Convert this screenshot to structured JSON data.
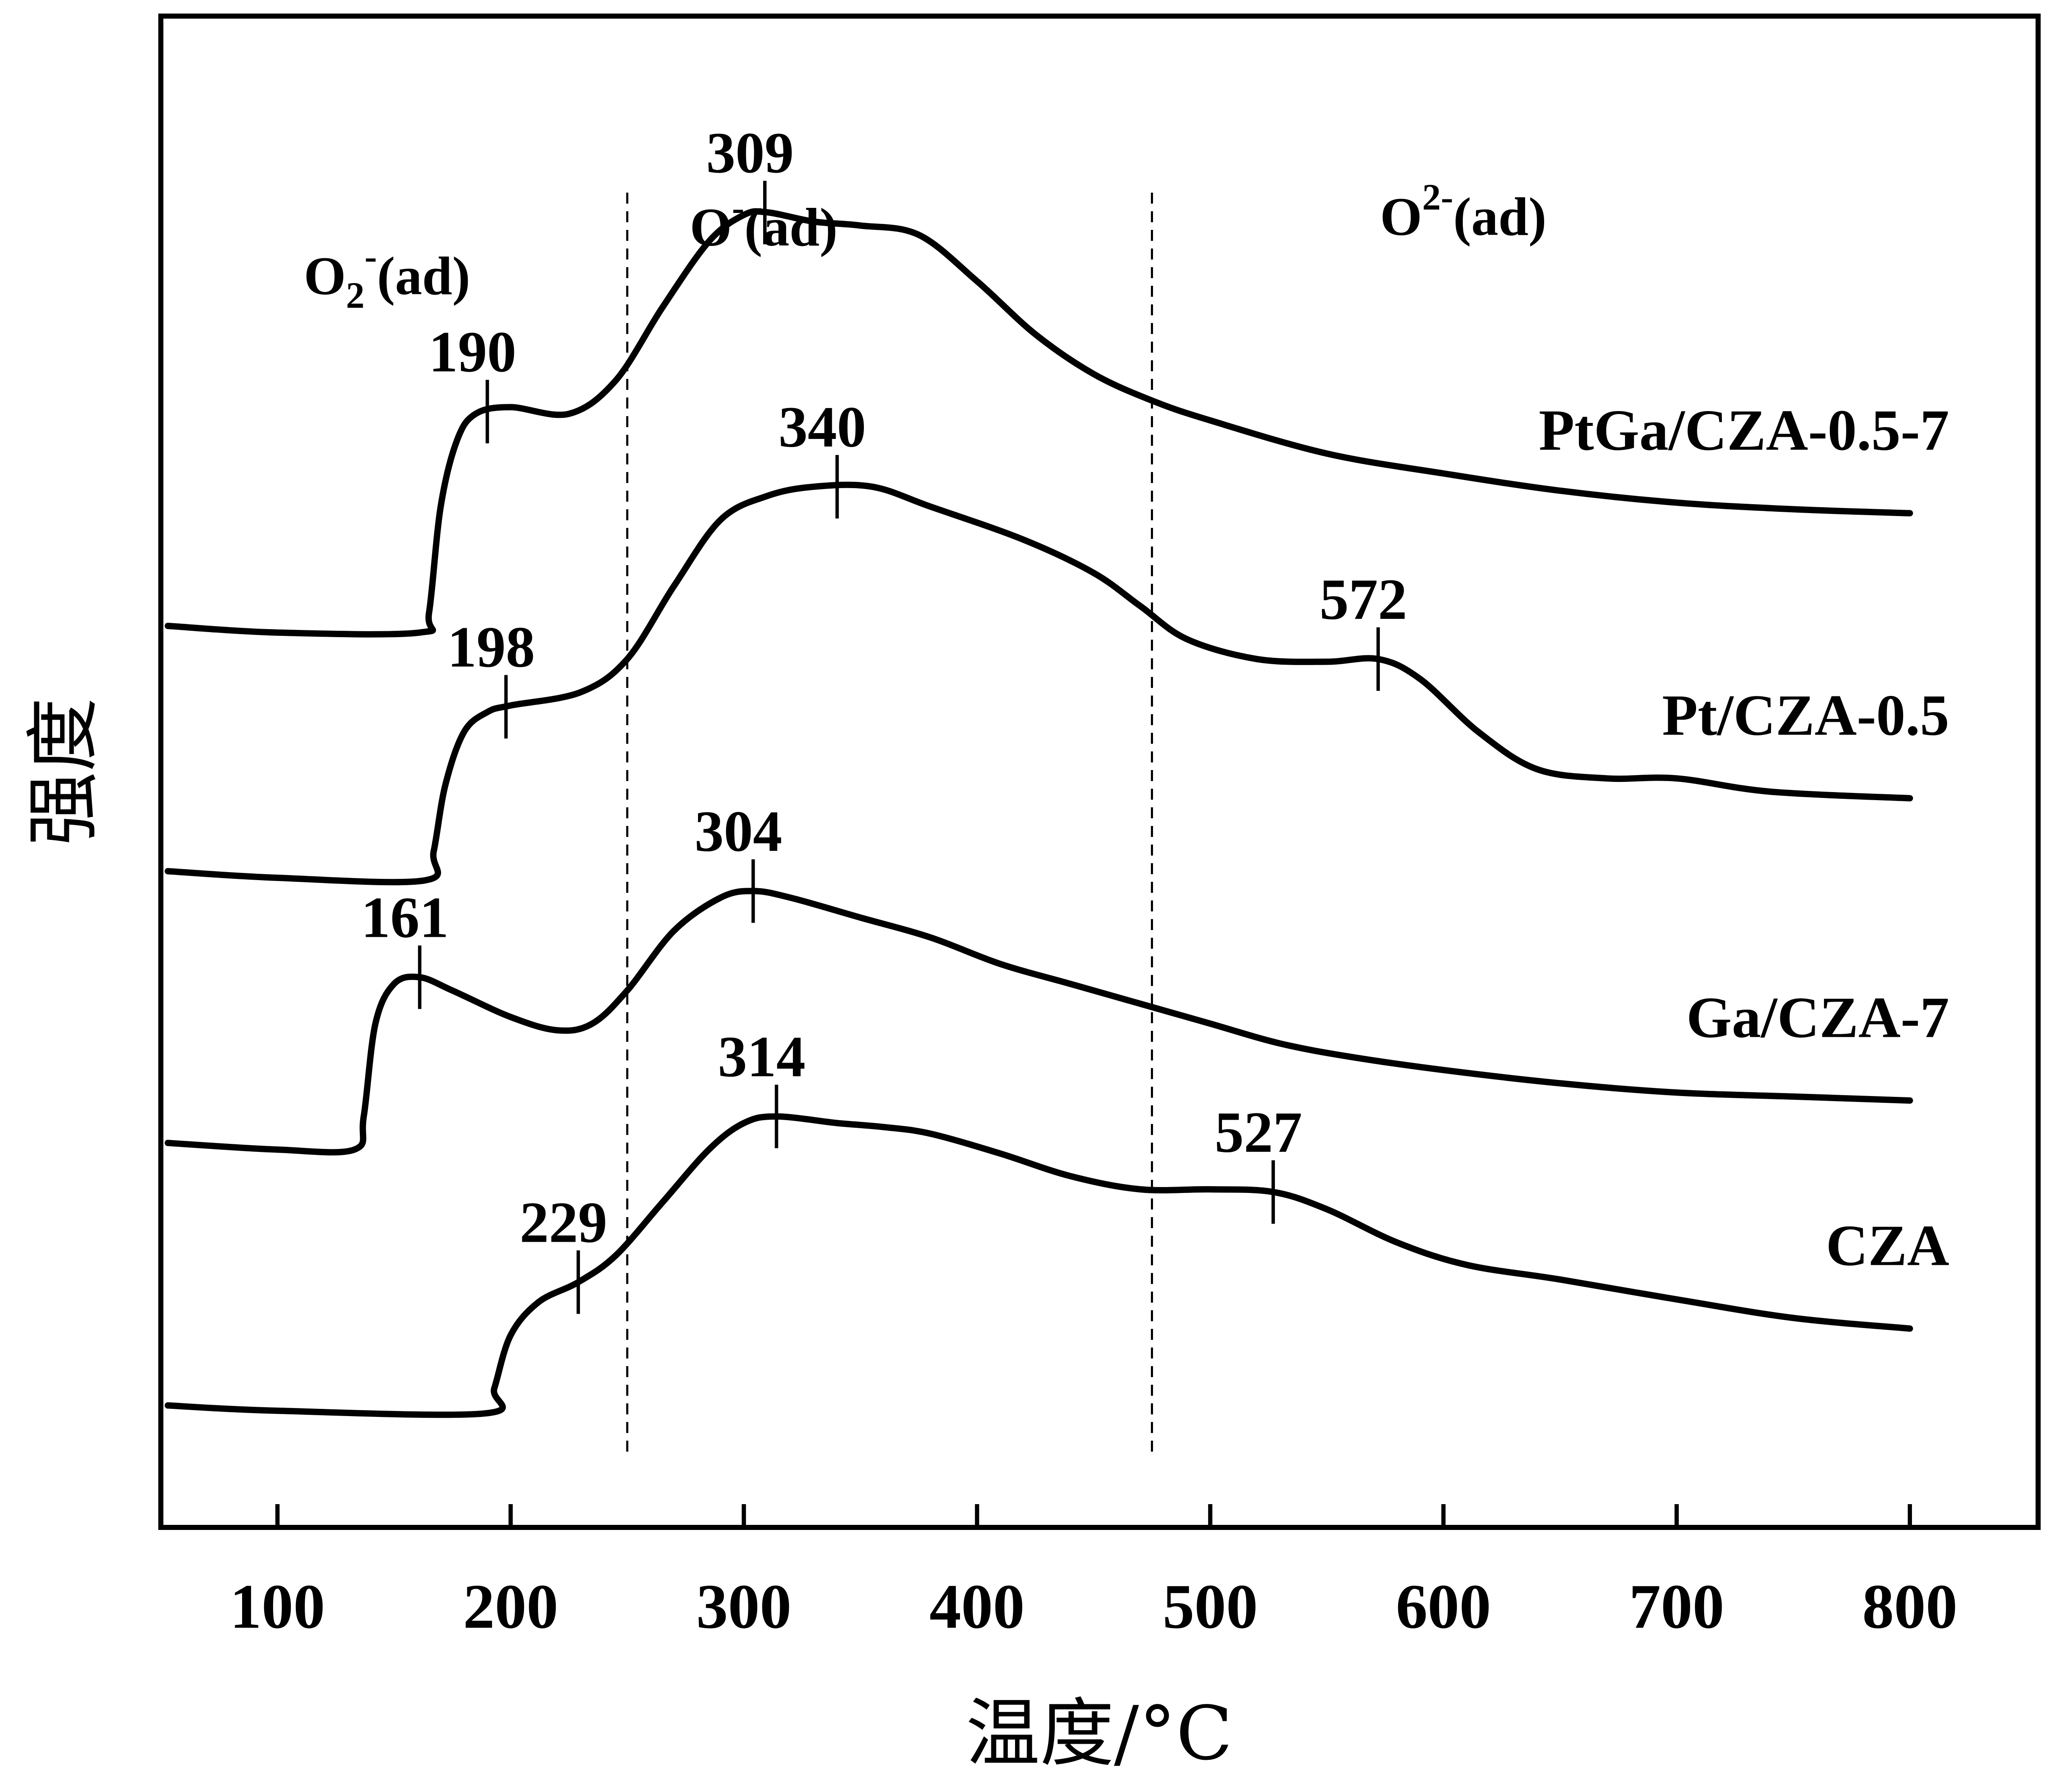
{
  "chart_data": {
    "type": "line",
    "xlabel": "温度/°C",
    "ylabel": "强度",
    "xlim": [
      50,
      855
    ],
    "xticks": [
      100,
      200,
      300,
      400,
      500,
      600,
      700,
      800
    ],
    "y_ticks_labeled": false,
    "divider_lines_x": [
      250,
      475
    ],
    "regions": [
      {
        "main": "O",
        "sub": "2",
        "sup": "-",
        "suffix": "(ad)"
      },
      {
        "main": "O",
        "sub": "",
        "sup": "-",
        "suffix": "(ad)"
      },
      {
        "main": "O",
        "sub": "",
        "sup": "2-",
        "suffix": "(ad)"
      }
    ],
    "series": [
      {
        "name": "PtGa/CZA-0.5-7",
        "points": [
          [
            53,
            8.7
          ],
          [
            100,
            8.65
          ],
          [
            161,
            8.65
          ],
          [
            165,
            8.8
          ],
          [
            170,
            9.6
          ],
          [
            177,
            10.1
          ],
          [
            185,
            10.3
          ],
          [
            200,
            10.35
          ],
          [
            225,
            10.3
          ],
          [
            245,
            10.55
          ],
          [
            265,
            11.1
          ],
          [
            285,
            11.6
          ],
          [
            300,
            11.8
          ],
          [
            310,
            11.82
          ],
          [
            330,
            11.75
          ],
          [
            350,
            11.72
          ],
          [
            375,
            11.65
          ],
          [
            400,
            11.3
          ],
          [
            425,
            10.9
          ],
          [
            450,
            10.6
          ],
          [
            475,
            10.4
          ],
          [
            500,
            10.25
          ],
          [
            550,
            10.0
          ],
          [
            600,
            9.85
          ],
          [
            650,
            9.72
          ],
          [
            700,
            9.63
          ],
          [
            750,
            9.58
          ],
          [
            800,
            9.55
          ]
        ],
        "peaks": [
          190,
          309
        ]
      },
      {
        "name": "Pt/CZA-0.5",
        "points": [
          [
            53,
            6.85
          ],
          [
            100,
            6.8
          ],
          [
            163,
            6.78
          ],
          [
            167,
            7.0
          ],
          [
            172,
            7.5
          ],
          [
            180,
            7.9
          ],
          [
            190,
            8.05
          ],
          [
            200,
            8.1
          ],
          [
            230,
            8.2
          ],
          [
            250,
            8.45
          ],
          [
            270,
            9.0
          ],
          [
            290,
            9.5
          ],
          [
            310,
            9.68
          ],
          [
            330,
            9.75
          ],
          [
            355,
            9.75
          ],
          [
            380,
            9.6
          ],
          [
            420,
            9.35
          ],
          [
            450,
            9.1
          ],
          [
            470,
            8.85
          ],
          [
            490,
            8.6
          ],
          [
            520,
            8.45
          ],
          [
            550,
            8.43
          ],
          [
            572,
            8.45
          ],
          [
            590,
            8.3
          ],
          [
            615,
            7.9
          ],
          [
            640,
            7.62
          ],
          [
            670,
            7.55
          ],
          [
            700,
            7.55
          ],
          [
            740,
            7.45
          ],
          [
            800,
            7.4
          ]
        ],
        "peaks": [
          198,
          340,
          572
        ]
      },
      {
        "name": "Ga/CZA-7",
        "points": [
          [
            53,
            4.8
          ],
          [
            100,
            4.75
          ],
          [
            133,
            4.75
          ],
          [
            137,
            5.0
          ],
          [
            142,
            5.7
          ],
          [
            150,
            6.0
          ],
          [
            161,
            6.05
          ],
          [
            175,
            5.95
          ],
          [
            200,
            5.75
          ],
          [
            220,
            5.65
          ],
          [
            235,
            5.7
          ],
          [
            250,
            5.95
          ],
          [
            270,
            6.4
          ],
          [
            290,
            6.65
          ],
          [
            304,
            6.7
          ],
          [
            320,
            6.65
          ],
          [
            350,
            6.5
          ],
          [
            380,
            6.35
          ],
          [
            410,
            6.15
          ],
          [
            440,
            6.0
          ],
          [
            470,
            5.85
          ],
          [
            500,
            5.7
          ],
          [
            530,
            5.55
          ],
          [
            560,
            5.45
          ],
          [
            600,
            5.35
          ],
          [
            650,
            5.25
          ],
          [
            700,
            5.18
          ],
          [
            750,
            5.15
          ],
          [
            800,
            5.12
          ]
        ],
        "peaks": [
          161,
          304
        ]
      },
      {
        "name": "CZA",
        "points": [
          [
            53,
            2.82
          ],
          [
            100,
            2.78
          ],
          [
            189,
            2.76
          ],
          [
            193,
            2.95
          ],
          [
            200,
            3.35
          ],
          [
            212,
            3.6
          ],
          [
            229,
            3.75
          ],
          [
            245,
            3.95
          ],
          [
            265,
            4.35
          ],
          [
            285,
            4.75
          ],
          [
            300,
            4.95
          ],
          [
            314,
            5.0
          ],
          [
            340,
            4.95
          ],
          [
            360,
            4.92
          ],
          [
            380,
            4.87
          ],
          [
            410,
            4.72
          ],
          [
            440,
            4.55
          ],
          [
            470,
            4.45
          ],
          [
            500,
            4.45
          ],
          [
            527,
            4.43
          ],
          [
            550,
            4.3
          ],
          [
            580,
            4.05
          ],
          [
            610,
            3.88
          ],
          [
            650,
            3.77
          ],
          [
            700,
            3.62
          ],
          [
            750,
            3.48
          ],
          [
            800,
            3.4
          ]
        ],
        "peaks": [
          229,
          314,
          527
        ]
      }
    ]
  }
}
